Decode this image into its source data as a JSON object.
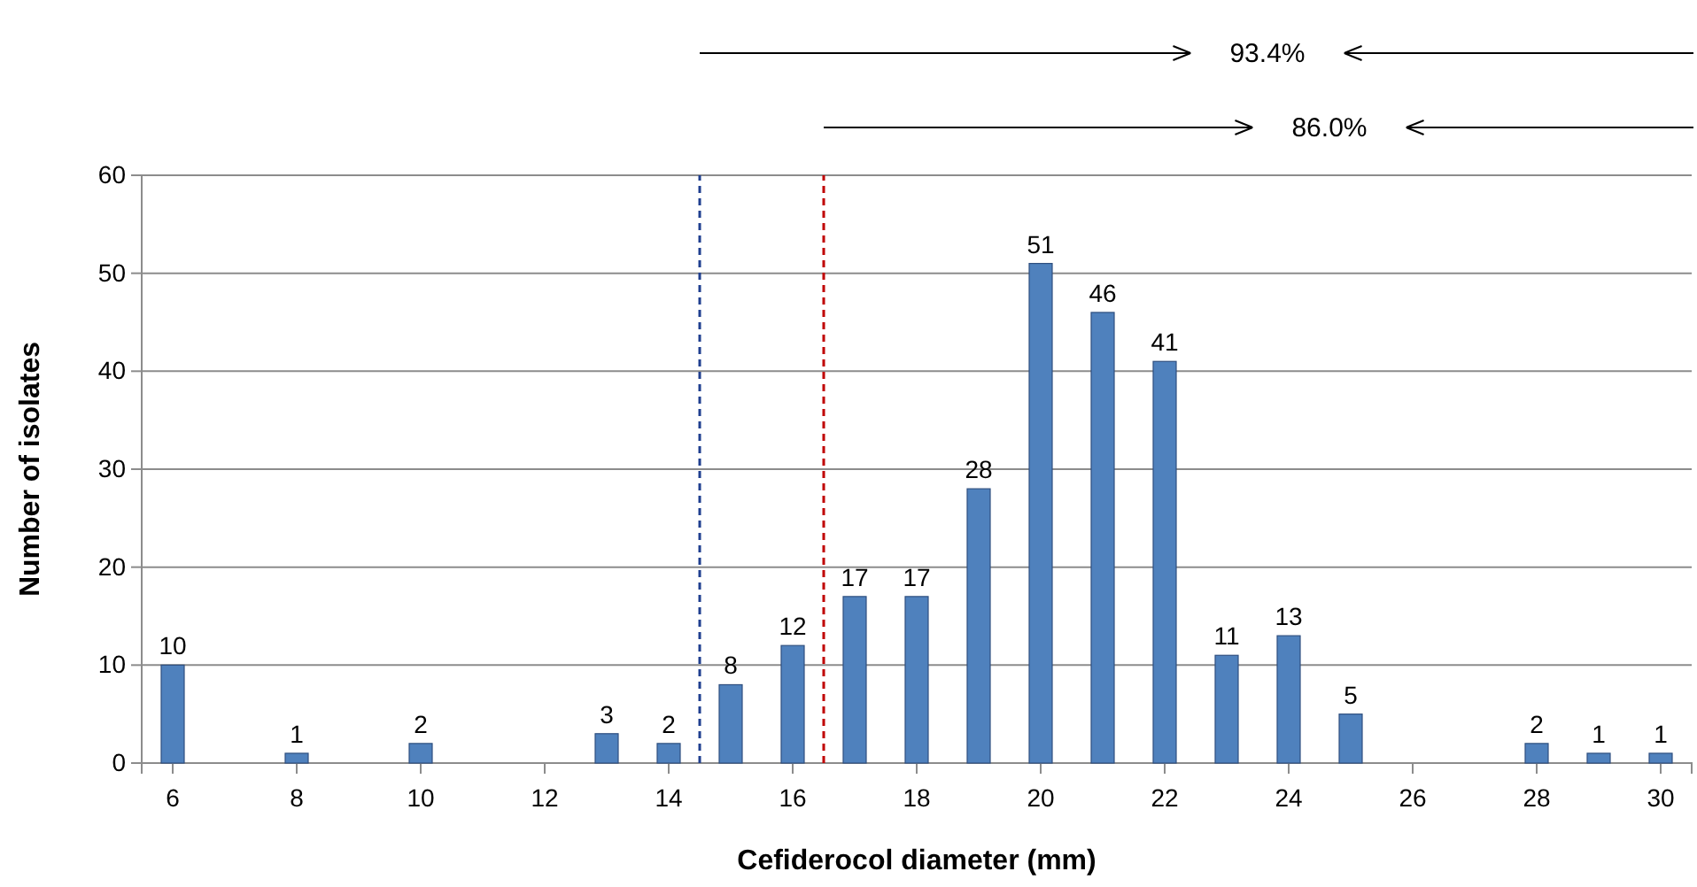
{
  "chart_data": {
    "type": "bar",
    "xlabel": "Cefiderocol diameter (mm)",
    "ylabel": "Number of isolates",
    "x": [
      6,
      7,
      8,
      9,
      10,
      11,
      12,
      13,
      14,
      15,
      16,
      17,
      18,
      19,
      20,
      21,
      22,
      23,
      24,
      25,
      26,
      27,
      28,
      29,
      30
    ],
    "values": [
      10,
      0,
      1,
      0,
      2,
      0,
      0,
      3,
      2,
      8,
      12,
      17,
      17,
      28,
      51,
      46,
      41,
      11,
      13,
      5,
      0,
      0,
      2,
      1,
      1
    ],
    "value_labels": [
      "10",
      null,
      "1",
      null,
      "2",
      null,
      null,
      "3",
      "2",
      "8",
      "12",
      "17",
      "17",
      "28",
      "51",
      "46",
      "41",
      "11",
      "13",
      "5",
      null,
      null,
      "2",
      "1",
      "1"
    ],
    "color": "#4f81bd",
    "xlim": [
      5.5,
      30.5
    ],
    "xticks": [
      6,
      8,
      10,
      12,
      14,
      16,
      18,
      20,
      22,
      24,
      26,
      28,
      30
    ],
    "ylim": [
      0,
      60
    ],
    "yticks": [
      0,
      10,
      20,
      30,
      40,
      50,
      60
    ],
    "grid": "y",
    "ref_lines": [
      {
        "axis": "x",
        "value": 14.5,
        "color": "#1f3f8f",
        "line_style": "dashed"
      },
      {
        "axis": "x",
        "value": 16.5,
        "color": "#c00000",
        "line_style": "dashed"
      }
    ],
    "annotations": [
      "93.4%",
      "86.0%"
    ]
  }
}
